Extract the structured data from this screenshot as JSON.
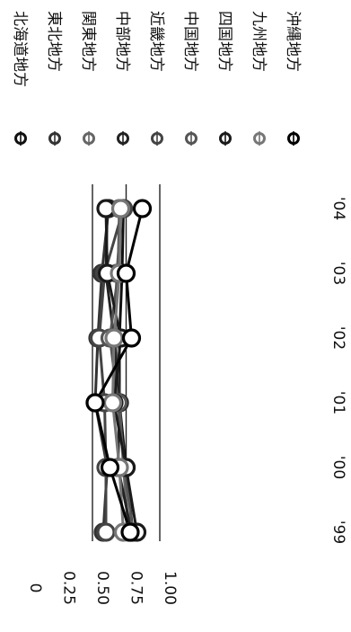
{
  "chart_data": {
    "type": "line",
    "orientation": "rotated-90",
    "title": "",
    "xlabel": "",
    "ylabel": "",
    "categories": [
      "'99",
      "'00",
      "'01",
      "'02",
      "'03",
      "'04"
    ],
    "ylim": [
      0,
      1.0
    ],
    "y_ticks": [
      "0",
      "0.25",
      "0.50",
      "0.75",
      "1.00"
    ],
    "y_tick_values": [
      0,
      0.25,
      0.5,
      0.75,
      1.0
    ],
    "grid": true,
    "legend_position": "right",
    "series": [
      {
        "name": "北海道地方",
        "values": [
          0.8,
          0.75,
          0.7,
          0.7,
          0.72,
          0.73
        ],
        "color": "#111111"
      },
      {
        "name": "東北地方",
        "values": [
          0.58,
          0.61,
          0.52,
          0.54,
          0.57,
          0.62
        ],
        "color": "#333333"
      },
      {
        "name": "関東地方",
        "values": [
          0.77,
          0.73,
          0.7,
          0.67,
          0.68,
          0.72
        ],
        "color": "#666666"
      },
      {
        "name": "中部地方",
        "values": [
          0.79,
          0.69,
          0.7,
          0.66,
          0.6,
          0.61
        ],
        "color": "#222222"
      },
      {
        "name": "近畿地方",
        "values": [
          0.6,
          0.6,
          0.59,
          0.55,
          0.59,
          0.73
        ],
        "color": "#444444"
      },
      {
        "name": "中国地方",
        "values": [
          0.8,
          0.74,
          0.69,
          0.63,
          0.69,
          0.7
        ],
        "color": "#555555"
      },
      {
        "name": "四国地方",
        "values": [
          0.83,
          0.75,
          0.66,
          0.71,
          0.61,
          0.6
        ],
        "color": "#1a1a1a"
      },
      {
        "name": "九州地方",
        "values": [
          0.73,
          0.7,
          0.65,
          0.66,
          0.7,
          0.71
        ],
        "color": "#777777"
      },
      {
        "name": "沖縄地方",
        "values": [
          0.78,
          0.63,
          0.52,
          0.79,
          0.75,
          0.87
        ],
        "color": "#000000"
      }
    ]
  }
}
